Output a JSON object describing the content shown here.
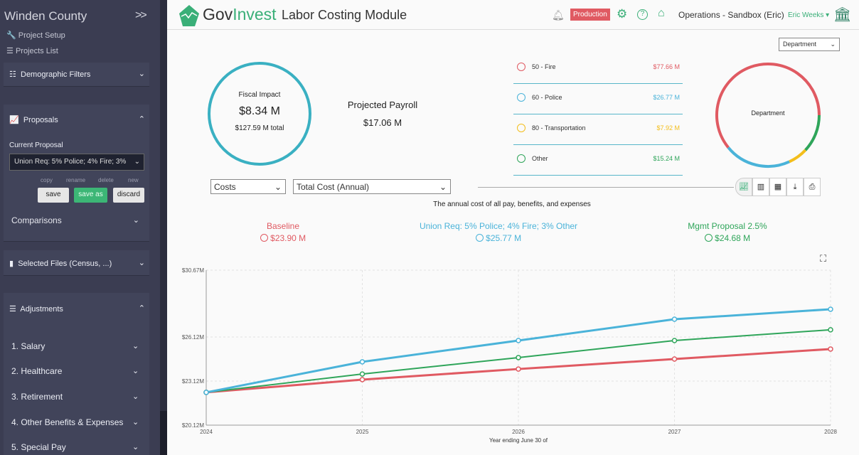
{
  "sidebar": {
    "title": "Winden County",
    "toggle": ">>",
    "links": [
      "Project Setup",
      "Projects List"
    ],
    "demographic_filters": "Demographic Filters",
    "proposals": "Proposals",
    "current_proposal_label": "Current Proposal",
    "current_proposal": "Union Req: 5% Police; 4% Fire; 3%",
    "actions": [
      "copy",
      "rename",
      "delete",
      "new"
    ],
    "buttons": {
      "save": "save",
      "save_as": "save as",
      "discard": "discard"
    },
    "comparisons": "Comparisons",
    "selected_files": "Selected Files (Census, ...)",
    "adjustments": "Adjustments",
    "adjustment_items": [
      "1. Salary",
      "2. Healthcare",
      "3. Retirement",
      "4. Other Benefits & Expenses",
      "5. Special Pay"
    ]
  },
  "header": {
    "logo_gov": "Gov",
    "logo_invest": "Invest",
    "module": "Labor Costing Module",
    "env_badge": "Production",
    "workspace": "Operations - Sandbox (Eric)",
    "user": "Eric Weeks ▾"
  },
  "summary": {
    "fiscal_impact_label": "Fiscal Impact",
    "fiscal_impact": "$8.34 M",
    "total": "$127.59 M total",
    "payroll_label": "Projected Payroll",
    "payroll": "$17.06 M"
  },
  "group_select": "Department",
  "departments": {
    "center_label": "Department",
    "items": [
      {
        "name": "50 - Fire",
        "value": "$77.66 M",
        "amount": 77.66,
        "color": "#e05a62"
      },
      {
        "name": "60 - Police",
        "value": "$26.77 M",
        "amount": 26.77,
        "color": "#4ab3d9"
      },
      {
        "name": "80 - Transportation",
        "value": "$7.92 M",
        "amount": 7.92,
        "color": "#f3be1c"
      },
      {
        "name": "Other",
        "value": "$15.24 M",
        "amount": 15.24,
        "color": "#2fa55a"
      }
    ]
  },
  "controls": {
    "category": "Costs",
    "metric": "Total Cost (Annual)",
    "description": "The annual cost of all pay, benefits, and expenses"
  },
  "scenarios": [
    {
      "name": "Baseline",
      "value": "$23.90 M",
      "color": "#e05a62"
    },
    {
      "name": "Union Req: 5% Police; 4% Fire; 3% Other",
      "value": "$25.77 M",
      "color": "#4ab3d9"
    },
    {
      "name": "Mgmt Proposal 2.5%",
      "value": "$24.68 M",
      "color": "#2fa55a"
    }
  ],
  "chart_data": {
    "type": "line",
    "x": [
      2024,
      2025,
      2026,
      2027,
      2028
    ],
    "xlabel": "Year ending June 30 of",
    "ylabel": "",
    "ylim": [
      20.12,
      30.67
    ],
    "yticks": [
      "$20.12M",
      "$23.12M",
      "$26.12M",
      "$30.67M"
    ],
    "ytick_values": [
      20.12,
      23.12,
      26.12,
      30.67
    ],
    "grid": true,
    "series": [
      {
        "name": "Baseline",
        "color": "#e05a62",
        "values": [
          22.35,
          23.22,
          23.94,
          24.62,
          25.3
        ]
      },
      {
        "name": "Union Req: 5% Police; 4% Fire; 3% Other",
        "color": "#4ab3d9",
        "values": [
          22.35,
          24.43,
          25.88,
          27.33,
          28.01
        ]
      },
      {
        "name": "Mgmt Proposal 2.5%",
        "color": "#2fa55a",
        "values": [
          22.35,
          23.6,
          24.72,
          25.88,
          26.61
        ]
      }
    ]
  }
}
